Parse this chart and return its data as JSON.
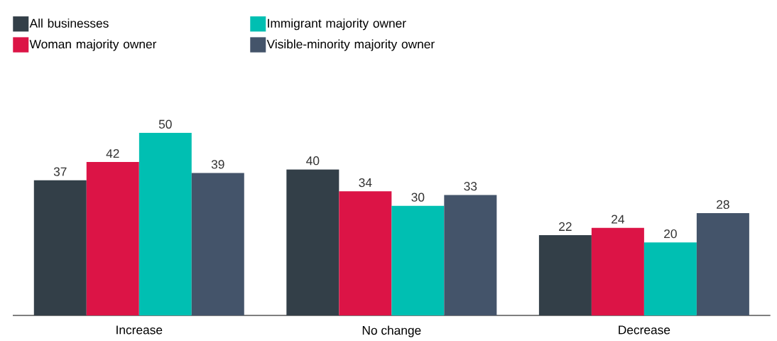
{
  "chart_data": {
    "type": "bar",
    "categories": [
      "Increase",
      "No change",
      "Decrease"
    ],
    "series": [
      {
        "name": "All businesses",
        "color": "#333f48",
        "values": [
          37,
          40,
          22
        ]
      },
      {
        "name": "Woman majority owner",
        "color": "#dc1446",
        "values": [
          42,
          34,
          24
        ]
      },
      {
        "name": "Immigrant majority owner",
        "color": "#00bfb2",
        "values": [
          50,
          30,
          20
        ]
      },
      {
        "name": "Visible-minority majority owner",
        "color": "#44546a",
        "values": [
          39,
          33,
          28
        ]
      }
    ],
    "data_labels": true,
    "legend": "top left"
  }
}
